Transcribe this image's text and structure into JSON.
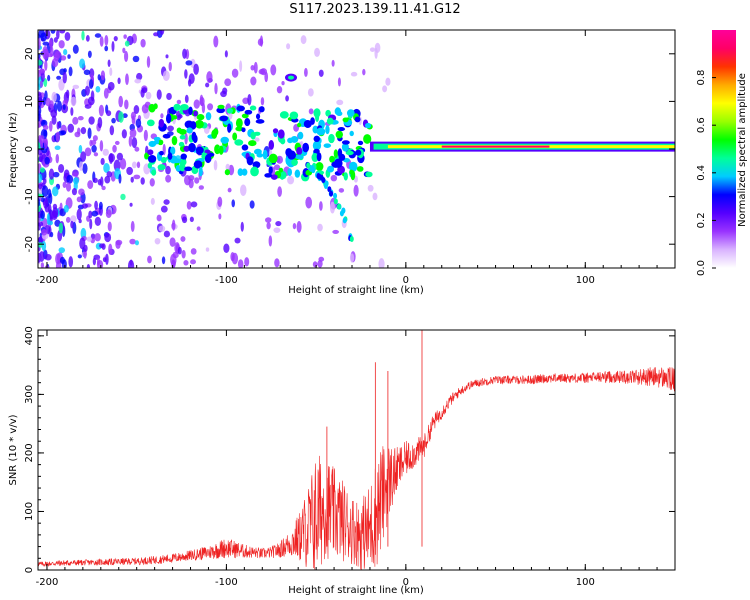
{
  "figure": {
    "title": "S117.2023.139.11.41.G12"
  },
  "chart_data": [
    {
      "type": "heatmap",
      "xlabel": "Height of straight line (km)",
      "ylabel": "Frequency (Hz)",
      "xlim": [
        -205,
        150
      ],
      "ylim": [
        -25,
        25
      ],
      "xticks": [
        -200,
        -100,
        0,
        100
      ],
      "yticks": [
        -20,
        -10,
        0,
        10,
        20
      ],
      "colorbar": {
        "label": "Normalized spectral amplitude",
        "range": [
          0,
          1
        ],
        "ticks": [
          "0.0",
          "0.2",
          "0.4",
          "0.6",
          "0.8"
        ],
        "tick_values": [
          0.0,
          0.2,
          0.4,
          0.6,
          0.8
        ],
        "colormap": [
          "#ffffff",
          "#d9b3ff",
          "#9933ff",
          "#5500ff",
          "#0000ff",
          "#00ccff",
          "#00ff99",
          "#00ff00",
          "#99ff00",
          "#ffff00",
          "#ffaa00",
          "#ff3300",
          "#ff0066",
          "#ff0099"
        ]
      },
      "features": [
        {
          "name": "carrier",
          "x_range": [
            -20,
            150
          ],
          "frequency": 0.5,
          "peak_amplitude": 0.9
        },
        {
          "name": "descending branch",
          "x": [
            -55,
            -45,
            -35,
            -30
          ],
          "frequency": [
            -3,
            -7,
            -13,
            -20
          ],
          "amplitude": 0.4
        },
        {
          "name": "upper spot",
          "x": -64,
          "frequency": 15,
          "amplitude": 0.45
        }
      ]
    },
    {
      "type": "line",
      "xlabel": "Height of straight line (km)",
      "ylabel": "SNR (10 * v/v)",
      "xlim": [
        -205,
        150
      ],
      "ylim": [
        0,
        410
      ],
      "xticks": [
        -200,
        -100,
        0,
        100
      ],
      "yticks": [
        0,
        100,
        200,
        300,
        400
      ],
      "color": "#ee2222",
      "x": [
        -205,
        -190,
        -175,
        -160,
        -150,
        -140,
        -130,
        -120,
        -110,
        -100,
        -95,
        -90,
        -85,
        -80,
        -75,
        -70,
        -65,
        -60,
        -55,
        -50,
        -45,
        -40,
        -35,
        -30,
        -25,
        -20,
        -15,
        -10,
        -5,
        0,
        5,
        10,
        15,
        20,
        25,
        30,
        35,
        40,
        50,
        60,
        70,
        80,
        90,
        100,
        110,
        120,
        130,
        140,
        150
      ],
      "values": [
        10,
        12,
        13,
        14,
        15,
        17,
        20,
        25,
        30,
        38,
        35,
        32,
        30,
        28,
        30,
        35,
        45,
        55,
        70,
        90,
        110,
        95,
        85,
        70,
        60,
        70,
        110,
        150,
        170,
        190,
        200,
        210,
        250,
        270,
        290,
        305,
        315,
        320,
        325,
        325,
        325,
        328,
        328,
        328,
        330,
        330,
        330,
        330,
        325
      ],
      "noise": [
        4,
        5,
        5,
        6,
        6,
        7,
        8,
        9,
        12,
        18,
        15,
        12,
        10,
        9,
        10,
        14,
        22,
        40,
        70,
        110,
        90,
        80,
        70,
        60,
        60,
        80,
        100,
        70,
        40,
        30,
        25,
        20,
        15,
        12,
        10,
        8,
        7,
        7,
        7,
        7,
        8,
        8,
        8,
        9,
        10,
        11,
        14,
        18,
        22
      ]
    }
  ]
}
